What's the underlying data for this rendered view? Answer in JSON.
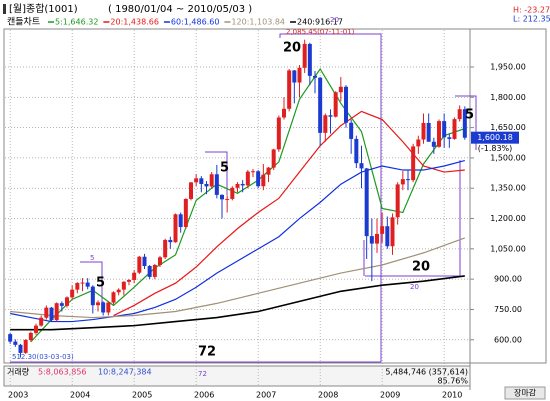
{
  "header": {
    "title": "[월]종합(1001)",
    "range": "( 1980/01/04 ~ 2010/05/03 )",
    "high_info": "H: -23.27",
    "low_info": "L: 212.35"
  },
  "legend": {
    "label": "캔들차트"
  },
  "volume_panel": {
    "label": "거래량",
    "ma5": "5:8,063,856",
    "ma10": "10:8,247,384",
    "last": "5,484,746 (357,614)",
    "ratio": "85.76%"
  },
  "button": {
    "label": "장마감"
  },
  "chart_data": {
    "type": "candlestick",
    "last_price": {
      "label": "1,600.18",
      "change": "(-1.83%)",
      "value": 1600.18
    },
    "xlim": [
      -1,
      89
    ],
    "xticks": [
      {
        "value": 0,
        "label": "2003"
      },
      {
        "value": 12,
        "label": "2004"
      },
      {
        "value": 24,
        "label": "2005"
      },
      {
        "value": 36,
        "label": "2006"
      },
      {
        "value": 48,
        "label": "2007"
      },
      {
        "value": 60,
        "label": "2008"
      },
      {
        "value": 72,
        "label": "2009"
      },
      {
        "value": 84,
        "label": "2010"
      }
    ],
    "ylim": [
      490,
      2133
    ],
    "yticks": [
      {
        "value": 600,
        "label": "600.00"
      },
      {
        "value": 750,
        "label": "750.00"
      },
      {
        "value": 900,
        "label": "900.00"
      },
      {
        "value": 1050,
        "label": "1,050.00"
      },
      {
        "value": 1200,
        "label": "1,200.00"
      },
      {
        "value": 1350,
        "label": "1,350.00"
      },
      {
        "value": 1500,
        "label": "1,500.00"
      },
      {
        "value": 1650,
        "label": "1,650.00"
      },
      {
        "value": 1800,
        "label": "1,800.00"
      },
      {
        "value": 1950,
        "label": "1,950.00"
      }
    ],
    "grid": true,
    "up_color": "#e02020",
    "down_color": "#1a3ad0",
    "x": [
      0,
      1,
      2,
      3,
      4,
      5,
      6,
      7,
      8,
      9,
      10,
      11,
      12,
      13,
      14,
      15,
      16,
      17,
      18,
      19,
      20,
      21,
      22,
      23,
      24,
      25,
      26,
      27,
      28,
      29,
      30,
      31,
      32,
      33,
      34,
      35,
      36,
      37,
      38,
      39,
      40,
      41,
      42,
      43,
      44,
      45,
      46,
      47,
      48,
      49,
      50,
      51,
      52,
      53,
      54,
      55,
      56,
      57,
      58,
      59,
      60,
      61,
      62,
      63,
      64,
      65,
      66,
      67,
      68,
      69,
      70,
      71,
      72,
      73,
      74,
      75,
      76,
      77,
      78,
      79,
      80,
      81,
      82,
      83,
      84,
      85,
      86,
      87,
      88
    ],
    "open": [
      628,
      591,
      575,
      535,
      599,
      634,
      670,
      709,
      759,
      697,
      781,
      768,
      810,
      848,
      881,
      883,
      863,
      771,
      785,
      735,
      784,
      835,
      848,
      887,
      896,
      932,
      1011,
      965,
      911,
      970,
      1008,
      1094,
      1083,
      1221,
      1158,
      1297,
      1379,
      1399,
      1371,
      1359,
      1419,
      1317,
      1295,
      1297,
      1352,
      1371,
      1364,
      1432,
      1434,
      1360,
      1417,
      1452,
      1542,
      1700,
      1743,
      1933,
      1873,
      1946,
      2064,
      1906,
      1897,
      1624,
      1711,
      1704,
      1825,
      1852,
      1674,
      1594,
      1474,
      1448,
      1113,
      1076,
      1124,
      1162,
      1063,
      1206,
      1369,
      1395,
      1390,
      1557,
      1591,
      1673,
      1580,
      1555,
      1682,
      1602,
      1594,
      1692,
      1741
    ],
    "high": [
      635,
      602,
      580,
      603,
      640,
      680,
      720,
      770,
      762,
      785,
      790,
      815,
      870,
      885,
      905,
      905,
      870,
      795,
      790,
      790,
      840,
      855,
      890,
      900,
      945,
      1015,
      1025,
      970,
      975,
      1015,
      1100,
      1110,
      1225,
      1230,
      1300,
      1380,
      1420,
      1410,
      1385,
      1430,
      1465,
      1320,
      1315,
      1360,
      1380,
      1390,
      1440,
      1445,
      1440,
      1470,
      1455,
      1545,
      1710,
      1800,
      1940,
      1935,
      1960,
      2085,
      2070,
      1930,
      1900,
      1720,
      1740,
      1830,
      1900,
      1860,
      1690,
      1610,
      1560,
      1450,
      1200,
      1200,
      1230,
      1210,
      1225,
      1380,
      1435,
      1440,
      1570,
      1610,
      1720,
      1720,
      1600,
      1690,
      1720,
      1620,
      1700,
      1760,
      1755
    ],
    "low": [
      580,
      565,
      512,
      530,
      590,
      625,
      665,
      700,
      690,
      690,
      740,
      760,
      800,
      830,
      840,
      850,
      730,
      740,
      720,
      720,
      775,
      820,
      820,
      870,
      880,
      925,
      950,
      900,
      900,
      960,
      1000,
      1050,
      1080,
      1130,
      1150,
      1290,
      1360,
      1330,
      1320,
      1350,
      1300,
      1200,
      1230,
      1290,
      1330,
      1330,
      1350,
      1405,
      1350,
      1340,
      1380,
      1440,
      1530,
      1690,
      1730,
      1770,
      1800,
      1920,
      1860,
      1820,
      1560,
      1580,
      1620,
      1700,
      1780,
      1650,
      1520,
      1450,
      1350,
      1000,
      890,
      1030,
      1080,
      1050,
      1020,
      1170,
      1340,
      1340,
      1380,
      1520,
      1570,
      1580,
      1520,
      1550,
      1550,
      1550,
      1590,
      1680,
      1590
    ],
    "close": [
      591,
      575,
      535,
      599,
      634,
      670,
      709,
      759,
      697,
      781,
      768,
      810,
      848,
      881,
      883,
      863,
      771,
      785,
      735,
      784,
      835,
      848,
      887,
      896,
      932,
      1011,
      965,
      911,
      970,
      1008,
      1094,
      1083,
      1221,
      1158,
      1297,
      1379,
      1399,
      1371,
      1359,
      1419,
      1317,
      1295,
      1297,
      1352,
      1371,
      1364,
      1432,
      1434,
      1360,
      1417,
      1452,
      1542,
      1700,
      1743,
      1933,
      1873,
      1946,
      2064,
      1906,
      1897,
      1624,
      1711,
      1704,
      1825,
      1852,
      1674,
      1594,
      1474,
      1448,
      1113,
      1076,
      1124,
      1162,
      1063,
      1206,
      1369,
      1395,
      1390,
      1557,
      1591,
      1673,
      1580,
      1555,
      1682,
      1602,
      1594,
      1692,
      1741,
      1600
    ],
    "series": [
      {
        "name": "5:1,646.32",
        "color": "#1e9a1e",
        "x": [
          4,
          8,
          12,
          16,
          20,
          24,
          28,
          32,
          36,
          40,
          44,
          48,
          52,
          56,
          60,
          64,
          68,
          72,
          76,
          80,
          84,
          88
        ],
        "values": [
          590,
          700,
          800,
          845,
          770,
          860,
          955,
          1020,
          1290,
          1370,
          1325,
          1390,
          1480,
          1790,
          1940,
          1770,
          1630,
          1250,
          1230,
          1470,
          1610,
          1645
        ]
      },
      {
        "name": "20:1,438.66",
        "color": "#e81818",
        "x": [
          20,
          24,
          28,
          32,
          36,
          40,
          44,
          48,
          52,
          56,
          60,
          64,
          68,
          72,
          76,
          80,
          84,
          88
        ],
        "values": [
          720,
          770,
          830,
          880,
          960,
          1060,
          1150,
          1230,
          1300,
          1430,
          1560,
          1660,
          1730,
          1690,
          1580,
          1460,
          1430,
          1440
        ]
      },
      {
        "name": "60:1,486.60",
        "color": "#1030e0",
        "x": [
          0,
          4,
          8,
          12,
          16,
          20,
          24,
          28,
          32,
          36,
          40,
          44,
          48,
          52,
          56,
          60,
          64,
          68,
          72,
          76,
          80,
          84,
          88
        ],
        "values": [
          730,
          710,
          690,
          690,
          700,
          715,
          730,
          760,
          800,
          860,
          930,
          990,
          1050,
          1110,
          1200,
          1280,
          1370,
          1430,
          1460,
          1440,
          1440,
          1460,
          1487
        ]
      },
      {
        "name": "120:1,103.84",
        "color": "#a09078",
        "x": [
          0,
          8,
          16,
          24,
          32,
          40,
          48,
          56,
          64,
          72,
          80,
          88
        ],
        "values": [
          740,
          720,
          710,
          720,
          740,
          780,
          830,
          880,
          930,
          970,
          1030,
          1104
        ]
      },
      {
        "name": "240:916.17",
        "color": "#000000",
        "x": [
          0,
          8,
          16,
          24,
          32,
          40,
          48,
          56,
          64,
          72,
          80,
          88
        ],
        "values": [
          650,
          650,
          660,
          670,
          690,
          710,
          740,
          790,
          840,
          870,
          890,
          916
        ]
      }
    ],
    "annotations": [
      "2,085.45(07-11-01)",
      "512.30(03-03-03)",
      "20",
      "5",
      "5",
      "5",
      "20",
      "72",
      "20",
      "5",
      "72",
      "20"
    ]
  }
}
